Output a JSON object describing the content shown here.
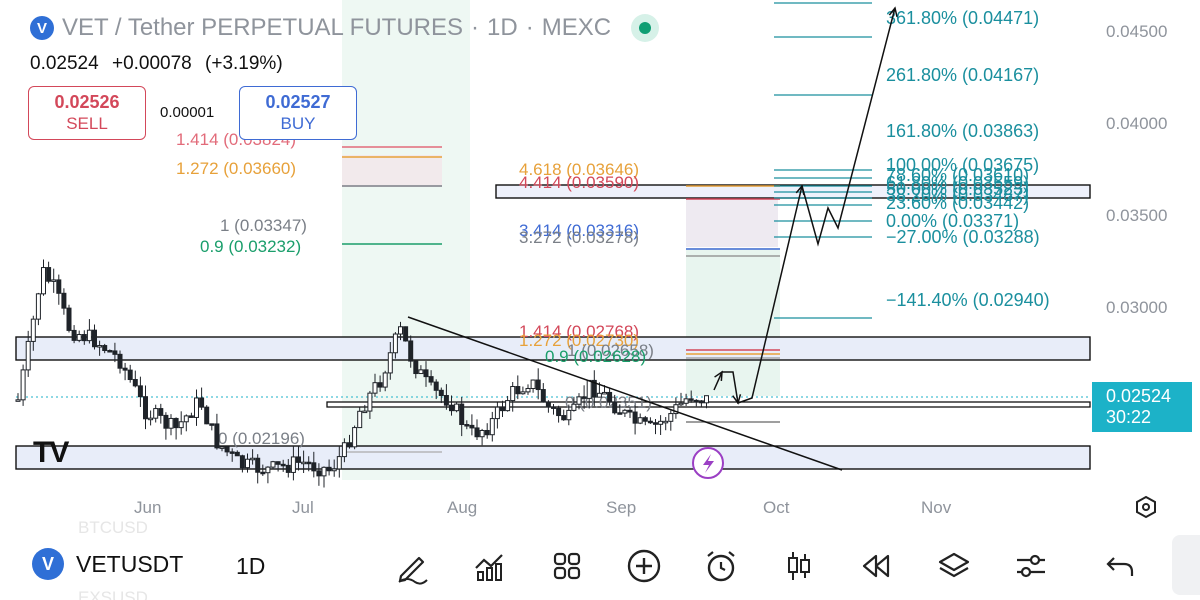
{
  "header": {
    "title": "VET / Tether PERPETUAL FUTURES",
    "timeframe": "1D",
    "exchange": "MEXC",
    "sep": "·"
  },
  "quote": {
    "last": "0.02524",
    "change": "+0.00078",
    "change_pct": "(+3.19%)"
  },
  "trade": {
    "sell_price": "0.02526",
    "sell_label": "SELL",
    "spread": "0.00001",
    "buy_price": "0.02527",
    "buy_label": "BUY"
  },
  "price_axis": {
    "ticks": [
      "0.04500",
      "0.04000",
      "0.03500",
      "0.03000"
    ],
    "current_price": "0.02524",
    "countdown": "30:22"
  },
  "time_axis": {
    "ticks": [
      "Jun",
      "Jul",
      "Aug",
      "Sep",
      "Oct",
      "Nov"
    ]
  },
  "fib_left": {
    "levels": [
      {
        "label": "1.414 (0.03824)",
        "color": "#e26b7a"
      },
      {
        "label": "1.272 (0.03660)",
        "color": "#e7a13a"
      },
      {
        "label": "1 (0.03347)",
        "color": "#7a7f87"
      },
      {
        "label": "0.9 (0.03232)",
        "color": "#1a9e6b"
      },
      {
        "label": "0 (0.02196)",
        "color": "#7a7f87"
      }
    ]
  },
  "fib_mid_upper": {
    "levels": [
      {
        "label": "4.618 (0.03646)",
        "color": "#e7a13a"
      },
      {
        "label": "4.414 (0.03590)",
        "color": "#d3485a"
      },
      {
        "label": "3.414 (0.03316)",
        "color": "#3f6bd4"
      },
      {
        "label": "3.272 (0.03278)",
        "color": "#7a7f87"
      }
    ]
  },
  "fib_mid_lower": {
    "levels": [
      {
        "label": "1.414 (0.02768)",
        "color": "#d3485a"
      },
      {
        "label": "1.272 (0.02730)",
        "color": "#e7a13a"
      },
      {
        "label": "1 (0.02658)",
        "color": "#7a7f87"
      },
      {
        "label": "0.9 (0.02628)",
        "color": "#1a9e6b"
      },
      {
        "label": "0 (0.02351)",
        "color": "#7a7f87"
      }
    ]
  },
  "fib_ext": {
    "levels": [
      {
        "label": "361.80% (0.04471)",
        "color": "#1a8f9e"
      },
      {
        "label": "261.80% (0.04167)",
        "color": "#1a8f9e"
      },
      {
        "label": "161.80% (0.03863)",
        "color": "#1a8f9e"
      },
      {
        "label": "100.00% (0.03675)",
        "color": "#1a8f9e"
      },
      {
        "label": "78.60% (0.03610)",
        "color": "#1a8f9e"
      },
      {
        "label": "61.80% (0.03559)",
        "color": "#1a8f9e"
      },
      {
        "label": "50.00% (0.03523)",
        "color": "#1a8f9e"
      },
      {
        "label": "38.20% (0.03487)",
        "color": "#1a8f9e"
      },
      {
        "label": "23.60% (0.03442)",
        "color": "#1a8f9e"
      },
      {
        "label": "0.00% (0.03371)",
        "color": "#1a8f9e"
      },
      {
        "label": "−27.00% (0.03288)",
        "color": "#1a8f9e"
      },
      {
        "label": "−141.40% (0.02940)",
        "color": "#1a8f9e"
      }
    ]
  },
  "ghost_symbols": [
    "BTCUSD",
    "EXSUSD"
  ],
  "toolbar": {
    "symbol": "VETUSDT",
    "coin_glyph": "V",
    "timeframe": "1D",
    "tools": [
      "pencil-icon",
      "indicators-icon",
      "grid-icon",
      "add-icon",
      "alarm-icon",
      "candles-icon",
      "replay-icon",
      "layers-icon",
      "settings-sliders-icon",
      "undo-icon"
    ]
  },
  "branding": {
    "logo_text": "TV"
  },
  "colors": {
    "up": "#1f2329",
    "accent_teal": "#1cb2c8",
    "sell": "#d3485a",
    "buy": "#3f6bd4",
    "zone_fill": "#e8edf9",
    "green_shade": "#d9efe4"
  }
}
